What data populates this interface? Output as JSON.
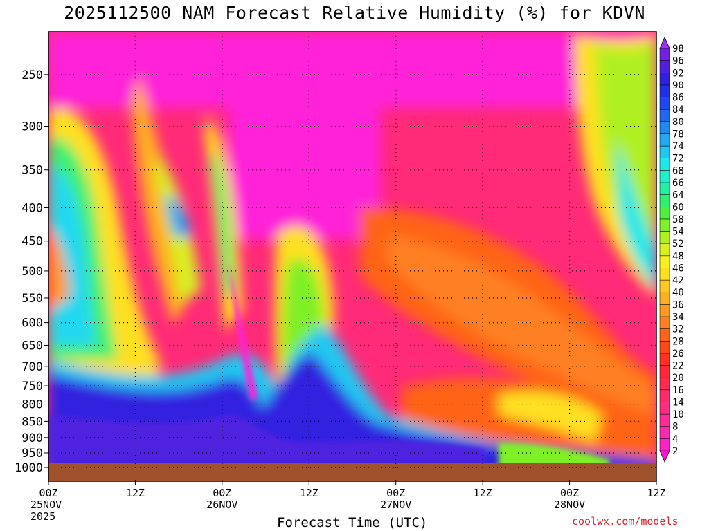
{
  "title": "2025112500 NAM Forecast Relative Humidity (%) for KDVN",
  "credit": "coolwx.com/models",
  "chart_data": {
    "type": "heatmap",
    "title": "2025112500 NAM Forecast Relative Humidity (%) for KDVN",
    "xlabel": "Forecast Time (UTC)",
    "ylabel": "",
    "y_scale": "log pressure",
    "y_ticks": [
      250,
      300,
      350,
      400,
      450,
      500,
      550,
      600,
      650,
      700,
      750,
      800,
      850,
      900,
      950,
      1000
    ],
    "y_range": [
      215,
      1000
    ],
    "x_ticks": [
      {
        "time": "2025-11-25 00Z",
        "lines": [
          "00Z",
          "25NOV",
          "2025"
        ]
      },
      {
        "time": "2025-11-25 12Z",
        "lines": [
          "12Z"
        ]
      },
      {
        "time": "2025-11-26 00Z",
        "lines": [
          "00Z",
          "26NOV"
        ]
      },
      {
        "time": "2025-11-26 12Z",
        "lines": [
          "12Z"
        ]
      },
      {
        "time": "2025-11-27 00Z",
        "lines": [
          "00Z",
          "27NOV"
        ]
      },
      {
        "time": "2025-11-27 12Z",
        "lines": [
          "12Z"
        ]
      },
      {
        "time": "2025-11-28 00Z",
        "lines": [
          "00Z",
          "28NOV"
        ]
      },
      {
        "time": "2025-11-28 12Z",
        "lines": [
          "12Z"
        ]
      }
    ],
    "x_range": [
      "2025-11-25 00Z",
      "2025-11-28 12Z"
    ],
    "grid": true,
    "colorbar": {
      "levels": [
        2,
        4,
        8,
        10,
        14,
        16,
        20,
        22,
        26,
        28,
        32,
        34,
        36,
        40,
        42,
        46,
        48,
        52,
        54,
        58,
        60,
        64,
        66,
        68,
        72,
        74,
        78,
        80,
        84,
        86,
        90,
        92,
        96,
        98
      ],
      "colors": [
        "#ff10e0",
        "#ff20c8",
        "#ff28b0",
        "#ff2c98",
        "#ff2c80",
        "#ff2a68",
        "#ff2a50",
        "#ff2838",
        "#ff3020",
        "#ff4a18",
        "#ff6418",
        "#ff8020",
        "#ff9a20",
        "#ffb020",
        "#ffc820",
        "#ffe020",
        "#f8f020",
        "#d8f020",
        "#b0f020",
        "#80f028",
        "#50f040",
        "#30f070",
        "#20f0a0",
        "#20f0c8",
        "#20e8e8",
        "#20c8f0",
        "#20a8f0",
        "#2088f0",
        "#2068f0",
        "#2048f0",
        "#2030e8",
        "#3020e0",
        "#5020e0",
        "#7020e0",
        "#a030f0"
      ]
    },
    "terrain_color": "#a0522d",
    "series": []
  }
}
